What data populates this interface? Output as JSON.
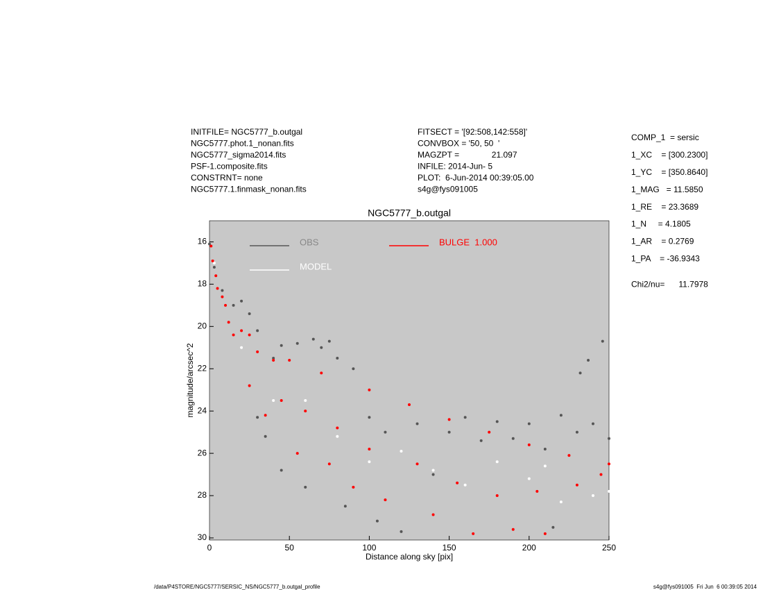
{
  "chart_data": {
    "type": "scatter",
    "title": "NGC5777_b.outgal",
    "xlabel": "Distance along sky [pix]",
    "ylabel": "magnitude/arcsec^2",
    "xlim": [
      0,
      250
    ],
    "xticks": [
      0,
      50,
      100,
      150,
      200,
      250
    ],
    "ylim": [
      30.1,
      15
    ],
    "yticks": [
      16,
      18,
      20,
      22,
      24,
      26,
      28,
      30
    ],
    "background": "#c8c8c8",
    "series": [
      {
        "name": "OBS",
        "color": "#555555",
        "x": [
          0,
          3,
          8,
          15,
          20,
          25,
          30,
          30,
          35,
          40,
          45,
          45,
          55,
          60,
          65,
          70,
          75,
          80,
          85,
          90,
          100,
          105,
          110,
          120,
          130,
          140,
          150,
          160,
          170,
          180,
          190,
          200,
          210,
          215,
          220,
          230,
          240,
          250,
          237,
          246,
          232
        ],
        "values": [
          16.1,
          17.2,
          18.3,
          19.0,
          18.8,
          19.4,
          20.2,
          24.3,
          25.2,
          21.5,
          20.9,
          26.8,
          20.8,
          27.6,
          20.6,
          21.0,
          20.7,
          21.5,
          28.5,
          22.0,
          24.3,
          29.2,
          25.0,
          29.7,
          24.6,
          27.0,
          25.0,
          24.3,
          25.4,
          24.5,
          25.3,
          24.6,
          25.8,
          29.5,
          24.2,
          25.0,
          24.6,
          25.3,
          21.6,
          20.7,
          22.2
        ]
      },
      {
        "name": "MODEL",
        "color": "#ffffff",
        "x": [
          3,
          20,
          40,
          60,
          80,
          100,
          120,
          140,
          160,
          180,
          200,
          220,
          240,
          250,
          210
        ],
        "values": [
          17.0,
          21.0,
          23.5,
          23.5,
          25.2,
          26.4,
          25.9,
          26.8,
          27.5,
          26.4,
          27.2,
          28.3,
          28.0,
          27.8,
          26.6
        ]
      },
      {
        "name": "BULGE  1.000",
        "color": "#ff0000",
        "x": [
          1,
          2,
          4,
          5,
          8,
          10,
          12,
          15,
          20,
          25,
          25,
          30,
          35,
          40,
          45,
          50,
          55,
          60,
          70,
          75,
          80,
          90,
          100,
          100,
          110,
          125,
          130,
          140,
          150,
          155,
          165,
          175,
          180,
          190,
          200,
          205,
          210,
          225,
          230,
          250,
          245
        ],
        "values": [
          16.2,
          16.9,
          17.6,
          18.2,
          18.6,
          19.0,
          19.8,
          20.4,
          20.2,
          20.4,
          22.8,
          21.2,
          24.2,
          21.6,
          23.5,
          21.6,
          26.0,
          24.0,
          22.2,
          26.5,
          24.8,
          27.6,
          23.0,
          25.8,
          28.2,
          23.7,
          26.5,
          28.9,
          24.4,
          27.4,
          29.8,
          25.0,
          28.0,
          29.6,
          25.6,
          27.8,
          29.8,
          26.1,
          27.5,
          26.5,
          27.0
        ]
      }
    ]
  },
  "info_left": [
    "INITFILE= NGC5777_b.outgal",
    "NGC5777.phot.1_nonan.fits",
    "NGC5777_sigma2014.fits",
    "PSF-1.composite.fits",
    "CONSTRNT= none",
    "NGC5777.1.finmask_nonan.fits"
  ],
  "info_middle": [
    "FITSECT = '[92:508,142:558]'",
    "CONVBOX = '50, 50  '",
    "MAGZPT =              21.097",
    "INFILE: 2014-Jun- 5",
    "PLOT:  6-Jun-2014 00:39:05.00",
    "s4g@fys091005"
  ],
  "info_right": [
    "COMP_1  = sersic",
    "1_XC    = [300.2300]",
    "1_YC    = [350.8640]",
    "1_MAG   = 11.5850",
    "1_RE    = 23.3689",
    "1_N     = 4.1805",
    "1_AR    = 0.2769",
    "1_PA    = -36.9343",
    "Chi2/nu=      11.7978"
  ],
  "footer_left": "/data/P4STORE/NGC5777/SERSIC_NS/NGC5777_b.outgal_profile",
  "footer_right": "s4g@fys091005  Fri Jun  6 00:39:05 2014"
}
